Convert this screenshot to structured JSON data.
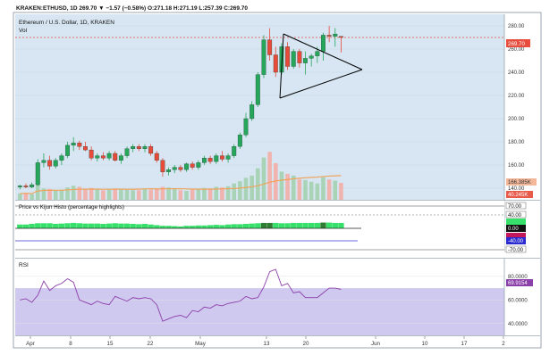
{
  "header": {
    "line1": "KRAKEN:ETHUSD, 1D 269.70 ▼ −1.57 (−0.58%) O:271.18 H:271.19 L:257.39 C:269.70",
    "title": "Ethereum / U.S. Dollar, 1D, KRAKEN",
    "vol_label": "Vol"
  },
  "colors": {
    "up": "#26a65b",
    "down": "#e84a3a",
    "panel_bg": "#d7e6f2",
    "rsi_band": "#cfc8ef",
    "rsi_line": "#8b3fa8",
    "price_line": "#e74c3c",
    "volume_up": "#a9d3b6",
    "volume_down": "#f0b3ae",
    "vol_ma": "#f0a35c",
    "hist_up": "#37e06a",
    "hist_down": "#2e7d32"
  },
  "chart_data": [
    {
      "type": "candlestick",
      "title": "Ethereum / U.S. Dollar, 1D, KRAKEN",
      "ylim": [
        130,
        290
      ],
      "y_ticks": [
        140,
        160,
        180,
        200,
        220,
        240,
        260,
        280
      ],
      "x_ticks": [
        "Apr",
        "8",
        "15",
        "22",
        "May",
        "13",
        "20",
        "Jun",
        "10",
        "17",
        "2"
      ],
      "last_price_label": "269.70",
      "volume_labels": [
        "166.385K",
        "40.245K"
      ],
      "candles": [
        {
          "o": 141,
          "h": 143,
          "l": 139,
          "c": 142
        },
        {
          "o": 142,
          "h": 144,
          "l": 140,
          "c": 141
        },
        {
          "o": 141,
          "h": 145,
          "l": 140,
          "c": 143
        },
        {
          "o": 143,
          "h": 165,
          "l": 142,
          "c": 162
        },
        {
          "o": 162,
          "h": 170,
          "l": 158,
          "c": 164
        },
        {
          "o": 164,
          "h": 168,
          "l": 156,
          "c": 159
        },
        {
          "o": 159,
          "h": 166,
          "l": 157,
          "c": 164
        },
        {
          "o": 164,
          "h": 170,
          "l": 160,
          "c": 168
        },
        {
          "o": 168,
          "h": 180,
          "l": 166,
          "c": 177
        },
        {
          "o": 177,
          "h": 184,
          "l": 172,
          "c": 179
        },
        {
          "o": 179,
          "h": 181,
          "l": 173,
          "c": 176
        },
        {
          "o": 176,
          "h": 180,
          "l": 172,
          "c": 173
        },
        {
          "o": 173,
          "h": 176,
          "l": 164,
          "c": 166
        },
        {
          "o": 166,
          "h": 170,
          "l": 163,
          "c": 168
        },
        {
          "o": 168,
          "h": 171,
          "l": 164,
          "c": 166
        },
        {
          "o": 166,
          "h": 172,
          "l": 164,
          "c": 170
        },
        {
          "o": 170,
          "h": 172,
          "l": 163,
          "c": 164
        },
        {
          "o": 164,
          "h": 170,
          "l": 161,
          "c": 168
        },
        {
          "o": 168,
          "h": 176,
          "l": 166,
          "c": 174
        },
        {
          "o": 174,
          "h": 178,
          "l": 171,
          "c": 176
        },
        {
          "o": 176,
          "h": 178,
          "l": 172,
          "c": 174
        },
        {
          "o": 174,
          "h": 178,
          "l": 171,
          "c": 176
        },
        {
          "o": 176,
          "h": 178,
          "l": 168,
          "c": 170
        },
        {
          "o": 170,
          "h": 172,
          "l": 162,
          "c": 164
        },
        {
          "o": 164,
          "h": 166,
          "l": 150,
          "c": 154
        },
        {
          "o": 154,
          "h": 158,
          "l": 151,
          "c": 156
        },
        {
          "o": 156,
          "h": 160,
          "l": 153,
          "c": 158
        },
        {
          "o": 158,
          "h": 160,
          "l": 154,
          "c": 156
        },
        {
          "o": 156,
          "h": 162,
          "l": 154,
          "c": 161
        },
        {
          "o": 161,
          "h": 163,
          "l": 156,
          "c": 158
        },
        {
          "o": 158,
          "h": 164,
          "l": 156,
          "c": 162
        },
        {
          "o": 162,
          "h": 168,
          "l": 160,
          "c": 166
        },
        {
          "o": 166,
          "h": 168,
          "l": 161,
          "c": 163
        },
        {
          "o": 163,
          "h": 170,
          "l": 161,
          "c": 168
        },
        {
          "o": 168,
          "h": 172,
          "l": 163,
          "c": 165
        },
        {
          "o": 165,
          "h": 170,
          "l": 162,
          "c": 168
        },
        {
          "o": 168,
          "h": 178,
          "l": 166,
          "c": 176
        },
        {
          "o": 176,
          "h": 188,
          "l": 174,
          "c": 186
        },
        {
          "o": 186,
          "h": 205,
          "l": 184,
          "c": 200
        },
        {
          "o": 200,
          "h": 215,
          "l": 198,
          "c": 212
        },
        {
          "o": 212,
          "h": 240,
          "l": 210,
          "c": 238
        },
        {
          "o": 238,
          "h": 272,
          "l": 235,
          "c": 268
        },
        {
          "o": 268,
          "h": 278,
          "l": 250,
          "c": 255
        },
        {
          "o": 255,
          "h": 262,
          "l": 236,
          "c": 240
        },
        {
          "o": 240,
          "h": 265,
          "l": 238,
          "c": 262
        },
        {
          "o": 262,
          "h": 266,
          "l": 242,
          "c": 245
        },
        {
          "o": 245,
          "h": 260,
          "l": 243,
          "c": 258
        },
        {
          "o": 258,
          "h": 260,
          "l": 244,
          "c": 248
        },
        {
          "o": 248,
          "h": 258,
          "l": 238,
          "c": 252
        },
        {
          "o": 252,
          "h": 256,
          "l": 245,
          "c": 254
        },
        {
          "o": 254,
          "h": 262,
          "l": 248,
          "c": 258
        },
        {
          "o": 258,
          "h": 274,
          "l": 250,
          "c": 272
        },
        {
          "o": 272,
          "h": 280,
          "l": 266,
          "c": 271
        },
        {
          "o": 271,
          "h": 278,
          "l": 262,
          "c": 273
        },
        {
          "o": 271,
          "h": 271,
          "l": 257,
          "c": 270
        }
      ],
      "volume": [
        22,
        24,
        20,
        60,
        40,
        38,
        32,
        36,
        44,
        50,
        46,
        38,
        42,
        36,
        34,
        36,
        40,
        38,
        36,
        34,
        34,
        38,
        36,
        40,
        46,
        44,
        38,
        34,
        32,
        36,
        38,
        42,
        40,
        46,
        44,
        48,
        58,
        66,
        78,
        86,
        112,
        150,
        170,
        130,
        100,
        92,
        86,
        72,
        70,
        64,
        58,
        80,
        72,
        68,
        60
      ]
    },
    {
      "type": "bar",
      "title": "Price vs Kijun Histo (percentage highlights)",
      "ylim": [
        -70,
        70
      ],
      "y_labels": [
        "70.00",
        "40.00",
        "0.00",
        "-40.00",
        "-70.00"
      ],
      "values": [
        12,
        12,
        14,
        16,
        16,
        16,
        14,
        15,
        16,
        17,
        16,
        15,
        15,
        15,
        14,
        15,
        16,
        15,
        15,
        14,
        13,
        14,
        12,
        10,
        8,
        8,
        7,
        6,
        8,
        8,
        9,
        9,
        10,
        11,
        10,
        12,
        13,
        13,
        14,
        15,
        16,
        17,
        17,
        17,
        16,
        16,
        17,
        17,
        17,
        17,
        17,
        18,
        18,
        17,
        17
      ]
    },
    {
      "type": "line",
      "title": "RSI",
      "ylim": [
        30,
        95
      ],
      "y_labels": [
        "80.0000",
        "60.0000",
        "40.0000"
      ],
      "band": [
        30,
        70
      ],
      "last_value": "69.9154",
      "values": [
        60,
        61,
        58,
        64,
        76,
        68,
        72,
        74,
        78,
        75,
        60,
        58,
        56,
        59,
        57,
        56,
        63,
        61,
        59,
        62,
        61,
        62,
        61,
        56,
        42,
        44,
        46,
        47,
        45,
        51,
        50,
        54,
        53,
        56,
        55,
        57,
        58,
        59,
        63,
        61,
        62,
        71,
        84,
        86,
        72,
        74,
        66,
        67,
        62,
        62,
        62,
        66,
        70,
        70,
        69
      ]
    }
  ]
}
